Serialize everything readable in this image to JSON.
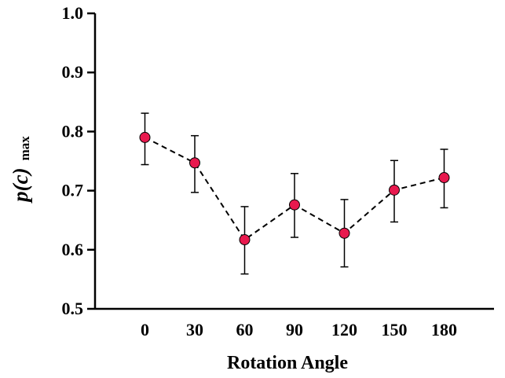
{
  "chart_data": {
    "type": "scatter",
    "title": "",
    "xlabel": "Rotation Angle",
    "ylabel_main": "p(c)",
    "ylabel_sub": "max",
    "x": [
      0,
      30,
      60,
      90,
      120,
      150,
      180
    ],
    "x_tick_labels": [
      "0",
      "30",
      "60",
      "90",
      "120",
      "150",
      "180"
    ],
    "y_tick_labels": [
      "0.5",
      "0.6",
      "0.7",
      "0.8",
      "0.9",
      "1.0"
    ],
    "xlim": [
      -30,
      210
    ],
    "ylim": [
      0.5,
      1.0
    ],
    "series": [
      {
        "name": "p(c) max",
        "values": [
          0.79,
          0.747,
          0.617,
          0.676,
          0.628,
          0.701,
          0.722
        ],
        "err_low": [
          0.744,
          0.697,
          0.559,
          0.621,
          0.571,
          0.647,
          0.671
        ],
        "err_high": [
          0.831,
          0.793,
          0.673,
          0.729,
          0.685,
          0.751,
          0.77
        ],
        "line_style": "dashed",
        "marker": "circle",
        "marker_color": "#e8194e"
      }
    ],
    "grid": false,
    "legend": "none"
  }
}
